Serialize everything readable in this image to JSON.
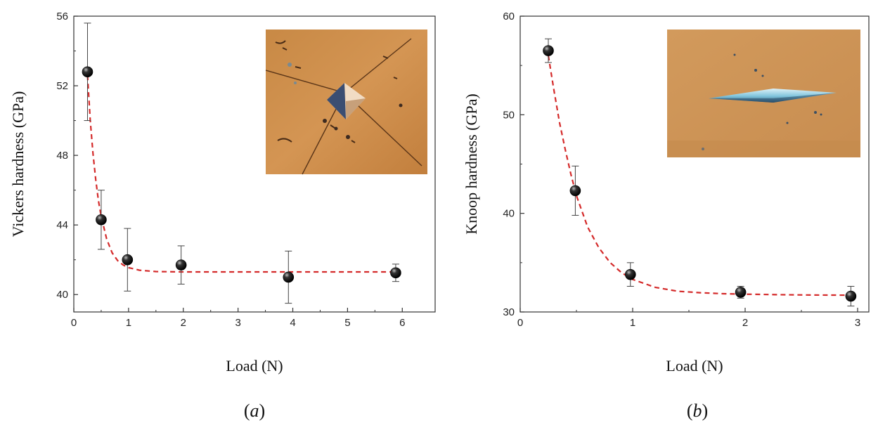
{
  "chart_data": [
    {
      "type": "scatter",
      "panel_label": "a",
      "xlabel": "Load (N)",
      "ylabel": "Vickers hardness (GPa)",
      "xlim": [
        0,
        6.6
      ],
      "ylim": [
        39,
        56
      ],
      "xticks": [
        0,
        1,
        2,
        3,
        4,
        5,
        6
      ],
      "yticks": [
        40,
        44,
        48,
        52,
        56
      ],
      "grid": false,
      "legend": "none",
      "points": [
        {
          "x": 0.25,
          "y": 52.8,
          "err": 2.8
        },
        {
          "x": 0.5,
          "y": 44.3,
          "err": 1.7
        },
        {
          "x": 0.98,
          "y": 42.0,
          "err": 1.8
        },
        {
          "x": 1.96,
          "y": 41.7,
          "err": 1.1
        },
        {
          "x": 3.92,
          "y": 41.0,
          "err": 1.5
        },
        {
          "x": 5.88,
          "y": 41.25,
          "err": 0.5
        }
      ],
      "fit_curve": {
        "style": "dashed",
        "color": "#d42a2a",
        "x": [
          0.25,
          0.3,
          0.35,
          0.4,
          0.45,
          0.5,
          0.6,
          0.7,
          0.8,
          0.9,
          1.0,
          1.2,
          1.5,
          2.0,
          3.0,
          4.0,
          5.0,
          5.88
        ],
        "y": [
          52.6,
          50.0,
          48.1,
          46.6,
          45.4,
          44.5,
          43.2,
          42.4,
          41.95,
          41.7,
          41.55,
          41.4,
          41.32,
          41.3,
          41.3,
          41.3,
          41.3,
          41.3
        ]
      },
      "inset": {
        "description_icon": "vickers-indent-micrograph"
      }
    },
    {
      "type": "scatter",
      "panel_label": "b",
      "xlabel": "Load (N)",
      "ylabel": "Knoop hardness (GPa)",
      "xlim": [
        0,
        3.1
      ],
      "ylim": [
        30,
        60
      ],
      "xticks": [
        0,
        1,
        2,
        3
      ],
      "yticks": [
        30,
        40,
        50,
        60
      ],
      "grid": false,
      "legend": "none",
      "points": [
        {
          "x": 0.25,
          "y": 56.5,
          "err": 1.2
        },
        {
          "x": 0.49,
          "y": 42.3,
          "err": 2.5
        },
        {
          "x": 0.98,
          "y": 33.8,
          "err": 1.2
        },
        {
          "x": 1.96,
          "y": 32.0,
          "err": 0.6
        },
        {
          "x": 2.94,
          "y": 31.6,
          "err": 1.0
        }
      ],
      "fit_curve": {
        "style": "dashed",
        "color": "#d42a2a",
        "x": [
          0.25,
          0.3,
          0.35,
          0.4,
          0.45,
          0.5,
          0.6,
          0.7,
          0.8,
          0.9,
          1.0,
          1.2,
          1.4,
          1.6,
          1.8,
          2.0,
          2.3,
          2.6,
          2.94
        ],
        "y": [
          56.0,
          52.5,
          49.2,
          46.5,
          44.0,
          41.8,
          38.6,
          36.5,
          35.0,
          34.0,
          33.3,
          32.5,
          32.1,
          31.95,
          31.85,
          31.8,
          31.75,
          31.72,
          31.7
        ]
      },
      "inset": {
        "description_icon": "knoop-indent-micrograph"
      }
    }
  ]
}
